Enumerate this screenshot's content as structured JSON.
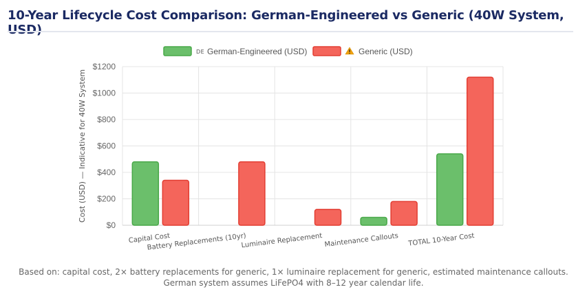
{
  "page_title": "10-Year Lifecycle Cost Comparison: German-Engineered vs Generic (40W System, USD)",
  "footnote": "Based on: capital cost, 2× battery replacements for generic, 1× luminaire replacement for generic, estimated maintenance callouts. German system assumes LiFePO4 with 8–12 year calendar life.",
  "colors": {
    "german_fill": "#6bbf6b",
    "german_stroke": "#49a849",
    "generic_fill": "#f4655b",
    "generic_stroke": "#e23e33"
  },
  "chart_data": {
    "type": "bar",
    "categories": [
      "Capital Cost",
      "Battery Replacements (10yr)",
      "Luminaire Replacement",
      "Maintenance Callouts",
      "TOTAL 10-Year Cost"
    ],
    "series": [
      {
        "name": "German-Engineered (USD)",
        "legend_prefix": "DE",
        "values": [
          480,
          0,
          0,
          60,
          540
        ]
      },
      {
        "name": "Generic (USD)",
        "legend_icon": "warning-icon",
        "values": [
          340,
          480,
          120,
          180,
          1120
        ]
      }
    ],
    "ylabel": "Cost (USD) — Indicative for 40W System",
    "ylim": [
      0,
      1200
    ],
    "yticks": [
      0,
      200,
      400,
      600,
      800,
      1000,
      1200
    ],
    "ytick_labels": [
      "$0",
      "$200",
      "$400",
      "$600",
      "$800",
      "$1000",
      "$1200"
    ],
    "grid": true,
    "legend_position": "top"
  }
}
